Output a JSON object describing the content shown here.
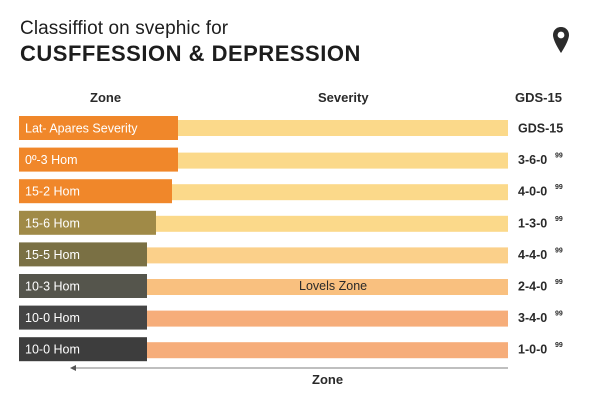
{
  "title_line1": "Classiffiot on svephic for",
  "title_line2": "CUSFFESSION & DEPRESSION",
  "icons": {
    "location": "map-pin-icon",
    "arrow": "left-arrow-icon"
  },
  "headers": {
    "zone": "Zone",
    "severity": "Severity",
    "gds": "GDS-15"
  },
  "colors": {
    "label_bar": [
      "#f0872a",
      "#f0872a",
      "#f0872a",
      "#a08a47",
      "#7a7044",
      "#55554c",
      "#454545",
      "#3d3d3d"
    ],
    "severity_bar": [
      "#fbd98a",
      "#fbd98a",
      "#fbd98a",
      "#fbd98a",
      "#fbd08a",
      "#f9c07f",
      "#f6ad7a",
      "#f6ad7a"
    ]
  },
  "chart_data": {
    "type": "bar",
    "orientation": "horizontal",
    "rows": [
      {
        "zone": "Lat- Apares Severity",
        "gds": "GDS-15",
        "sup": ""
      },
      {
        "zone": "0º-3 Hom",
        "gds": "3-6-0",
        "sup": "99"
      },
      {
        "zone": "15-2 Hom",
        "gds": "4-0-0",
        "sup": "99"
      },
      {
        "zone": "15-6 Hom",
        "gds": "1-3-0",
        "sup": "99"
      },
      {
        "zone": "15-5 Hom",
        "gds": "4-4-0",
        "sup": "99"
      },
      {
        "zone": "10-3 Hom",
        "gds": "2-4-0",
        "sup": "99"
      },
      {
        "zone": "10-0 Hom",
        "gds": "3-4-0",
        "sup": "99"
      },
      {
        "zone": "10-0 Hom",
        "gds": "1-0-0",
        "sup": "99"
      }
    ],
    "annotation": "Lovels Zone",
    "xlabel": "Zone"
  }
}
